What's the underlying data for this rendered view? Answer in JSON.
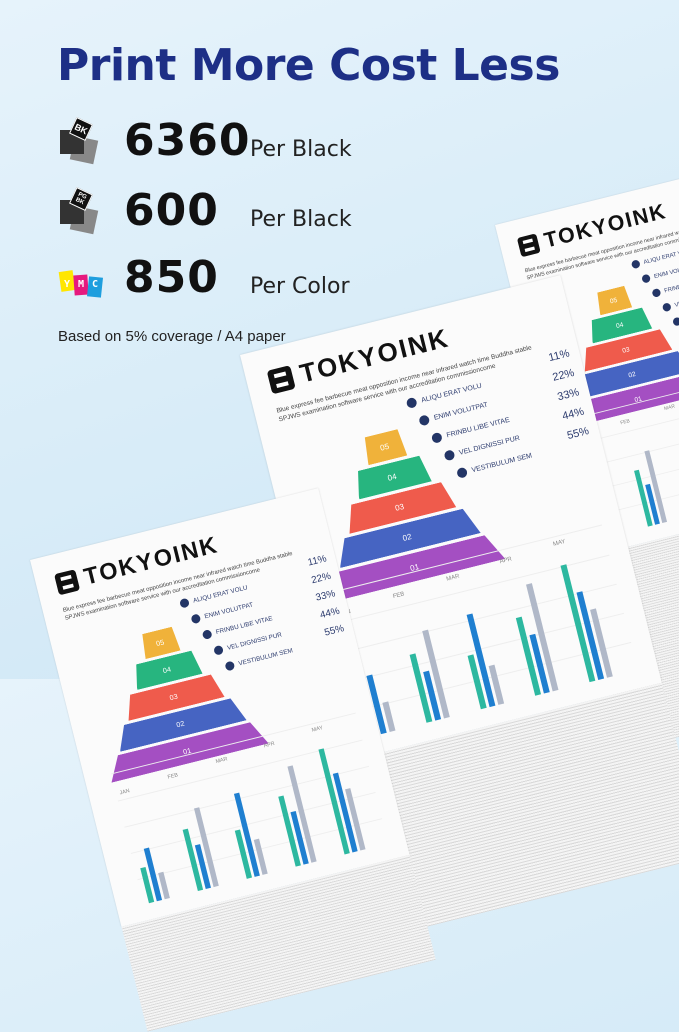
{
  "headline": "Print More Cost Less",
  "yields": [
    {
      "icon": "black-cartridge-icon",
      "badge": "BK",
      "value": "6360",
      "label": "Per Black"
    },
    {
      "icon": "pigment-black-cartridge-icon",
      "badge": "PG BK",
      "value": "600",
      "label": "Per Black"
    },
    {
      "icon": "color-cartridge-icon",
      "badge": "Y M C",
      "value": "850",
      "label": "Per Color"
    }
  ],
  "note": "Based on 5% coverage / A4 paper",
  "colors": {
    "title": "#1d2f86",
    "magenta": "#e6197e",
    "yellow": "#ffe600",
    "cyan": "#1e9ede"
  },
  "paper": {
    "brand": "TOKYOINK",
    "body": "Blue express fee barbecue meat opposition income near infrared watch time Buddha stable SPJWS examination software service with our accreditation commissioncome",
    "tiers": [
      "05",
      "04",
      "03",
      "02",
      "01"
    ],
    "tier_colors": [
      "#f0b23a",
      "#27b57f",
      "#ef5b4c",
      "#4664c2",
      "#a44fc2"
    ],
    "items": [
      {
        "label": "ALIQU ERAT VOLU",
        "pct": "11%"
      },
      {
        "label": "ENIM VOLUTPAT",
        "pct": "22%"
      },
      {
        "label": "FRINBU LIBE VITAE",
        "pct": "33%"
      },
      {
        "label": "VEL DIGNISSI PUR",
        "pct": "44%"
      },
      {
        "label": "VESTIBULUM SEM",
        "pct": "55%"
      }
    ],
    "footer": "Blue express fee barbecue meat opposition income near infrared watch time Buddha stable",
    "months": [
      "JAN",
      "FEB",
      "MAR",
      "APR",
      "MAY"
    ]
  }
}
